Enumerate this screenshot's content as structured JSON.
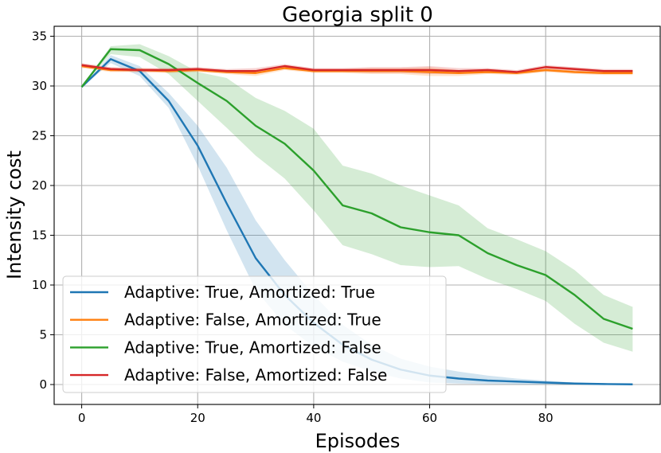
{
  "chart_data": {
    "type": "line",
    "title": "Georgia split 0",
    "xlabel": "Episodes",
    "ylabel": "Intensity cost",
    "xlim": [
      -4.75,
      99.75
    ],
    "ylim": [
      -2,
      36
    ],
    "xticks": [
      0,
      20,
      40,
      60,
      80
    ],
    "yticks": [
      0,
      5,
      10,
      15,
      20,
      25,
      30,
      35
    ],
    "grid": true,
    "legend_position": "lower-left",
    "x": [
      0,
      5,
      10,
      15,
      20,
      25,
      30,
      35,
      40,
      45,
      50,
      55,
      60,
      65,
      70,
      75,
      80,
      85,
      90,
      95
    ],
    "series": [
      {
        "name": "Adaptive: True, Amortized: True",
        "color": "#1f77b4",
        "values": [
          29.9,
          32.7,
          31.5,
          28.5,
          24.0,
          18.2,
          12.7,
          9.0,
          6.2,
          4.0,
          2.5,
          1.5,
          0.9,
          0.6,
          0.4,
          0.3,
          0.2,
          0.1,
          0.05,
          0.02
        ],
        "lower": [
          29.9,
          32.3,
          31.0,
          27.8,
          22.0,
          15.5,
          9.5,
          6.0,
          3.8,
          2.3,
          1.3,
          0.6,
          0.2,
          0.1,
          0.05,
          0.02,
          0.0,
          0.0,
          0.0,
          0.0
        ],
        "upper": [
          29.9,
          33.1,
          32.0,
          29.3,
          26.0,
          21.8,
          16.5,
          12.5,
          9.0,
          6.0,
          4.0,
          2.6,
          1.8,
          1.3,
          0.9,
          0.6,
          0.4,
          0.2,
          0.1,
          0.05
        ]
      },
      {
        "name": "Adaptive: False, Amortized: True",
        "color": "#ff7f0e",
        "values": [
          32.0,
          31.6,
          31.6,
          31.5,
          31.6,
          31.4,
          31.3,
          31.8,
          31.5,
          31.5,
          31.5,
          31.5,
          31.4,
          31.3,
          31.4,
          31.3,
          31.6,
          31.4,
          31.3,
          31.3
        ],
        "lower": [
          31.8,
          31.4,
          31.4,
          31.3,
          31.4,
          31.2,
          31.0,
          31.6,
          31.3,
          31.3,
          31.2,
          31.2,
          31.0,
          31.0,
          31.2,
          31.1,
          31.4,
          31.2,
          31.1,
          31.1
        ],
        "upper": [
          32.2,
          31.8,
          31.8,
          31.7,
          31.8,
          31.6,
          31.6,
          32.0,
          31.7,
          31.7,
          31.8,
          31.8,
          31.9,
          31.6,
          31.6,
          31.5,
          31.8,
          31.6,
          31.5,
          31.5
        ]
      },
      {
        "name": "Adaptive: True, Amortized: False",
        "color": "#2ca02c",
        "values": [
          29.9,
          33.7,
          33.6,
          32.2,
          30.3,
          28.5,
          26.0,
          24.2,
          21.5,
          18.0,
          17.2,
          15.8,
          15.3,
          15.0,
          13.2,
          12.0,
          11.0,
          9.0,
          6.6,
          5.6
        ],
        "lower": [
          29.9,
          33.2,
          32.9,
          31.2,
          28.5,
          25.8,
          23.0,
          20.7,
          17.5,
          14.0,
          13.1,
          12.0,
          11.8,
          11.9,
          10.6,
          9.6,
          8.4,
          6.1,
          4.2,
          3.3
        ],
        "upper": [
          29.9,
          34.0,
          34.2,
          33.0,
          31.4,
          30.8,
          28.8,
          27.5,
          25.7,
          22.0,
          21.2,
          20.0,
          19.0,
          18.0,
          15.7,
          14.6,
          13.4,
          11.5,
          9.0,
          7.8
        ]
      },
      {
        "name": "Adaptive: False, Amortized: False",
        "color": "#d62728",
        "values": [
          32.1,
          31.7,
          31.6,
          31.6,
          31.7,
          31.5,
          31.5,
          32.0,
          31.6,
          31.6,
          31.6,
          31.6,
          31.6,
          31.5,
          31.6,
          31.4,
          31.9,
          31.7,
          31.5,
          31.5
        ],
        "lower": [
          31.9,
          31.5,
          31.4,
          31.4,
          31.5,
          31.3,
          31.2,
          31.8,
          31.4,
          31.4,
          31.3,
          31.3,
          31.2,
          31.2,
          31.4,
          31.2,
          31.7,
          31.5,
          31.3,
          31.3
        ],
        "upper": [
          32.3,
          31.9,
          31.8,
          31.8,
          31.9,
          31.7,
          31.8,
          32.2,
          31.8,
          31.8,
          31.9,
          31.9,
          32.0,
          31.8,
          31.8,
          31.6,
          32.1,
          31.9,
          31.7,
          31.7
        ]
      }
    ]
  }
}
